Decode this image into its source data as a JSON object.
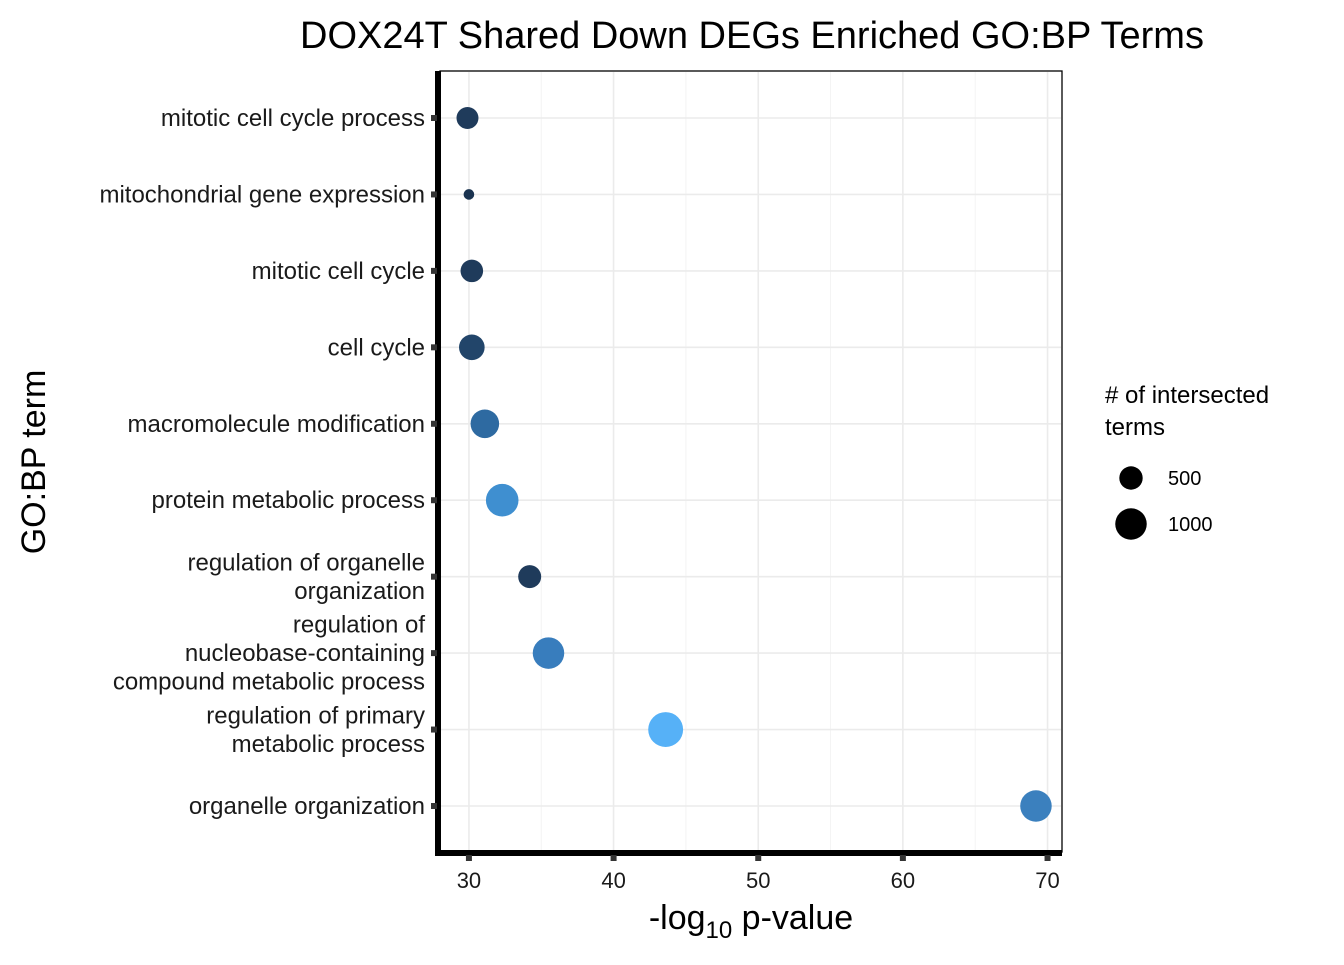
{
  "chart_data": {
    "type": "scatter",
    "title": "DOX24T Shared Down DEGs Enriched GO:BP Terms",
    "xlabel": {
      "prefix": "-log",
      "subscript": "10",
      "suffix": " p-value"
    },
    "ylabel": "GO:BP term",
    "xlim": [
      28,
      71
    ],
    "xticks": [
      30,
      40,
      50,
      60,
      70
    ],
    "grid": true,
    "legend": {
      "title_lines": [
        "# of intersected",
        " terms"
      ],
      "placement": "right",
      "entries": [
        {
          "label": "500",
          "size_value": 500
        },
        {
          "label": "1000",
          "size_value": 1000
        }
      ]
    },
    "points": [
      {
        "term_lines": [
          "mitotic cell cycle process"
        ],
        "x": 29.9,
        "size": 430,
        "color": "#1f3b5b"
      },
      {
        "term_lines": [
          "mitochondrial gene expression"
        ],
        "x": 30.0,
        "size": 60,
        "color": "#1a3350"
      },
      {
        "term_lines": [
          "mitotic cell cycle"
        ],
        "x": 30.2,
        "size": 460,
        "color": "#1f3b5b"
      },
      {
        "term_lines": [
          "cell cycle"
        ],
        "x": 30.2,
        "size": 620,
        "color": "#22456a"
      },
      {
        "term_lines": [
          "macromolecule modification"
        ],
        "x": 31.1,
        "size": 800,
        "color": "#2e6aa1"
      },
      {
        "term_lines": [
          "protein metabolic process"
        ],
        "x": 32.3,
        "size": 1080,
        "color": "#3f8fd0"
      },
      {
        "term_lines": [
          "regulation of organelle",
          "organization"
        ],
        "x": 34.2,
        "size": 480,
        "color": "#1f3b5b"
      },
      {
        "term_lines": [
          "regulation of",
          "nucleobase-containing",
          "compound metabolic process"
        ],
        "x": 35.5,
        "size": 1000,
        "color": "#387dbd"
      },
      {
        "term_lines": [
          "regulation of primary",
          "metabolic process"
        ],
        "x": 43.6,
        "size": 1260,
        "color": "#56b1f7"
      },
      {
        "term_lines": [
          "organelle organization"
        ],
        "x": 69.2,
        "size": 1000,
        "color": "#3b80be"
      }
    ]
  }
}
